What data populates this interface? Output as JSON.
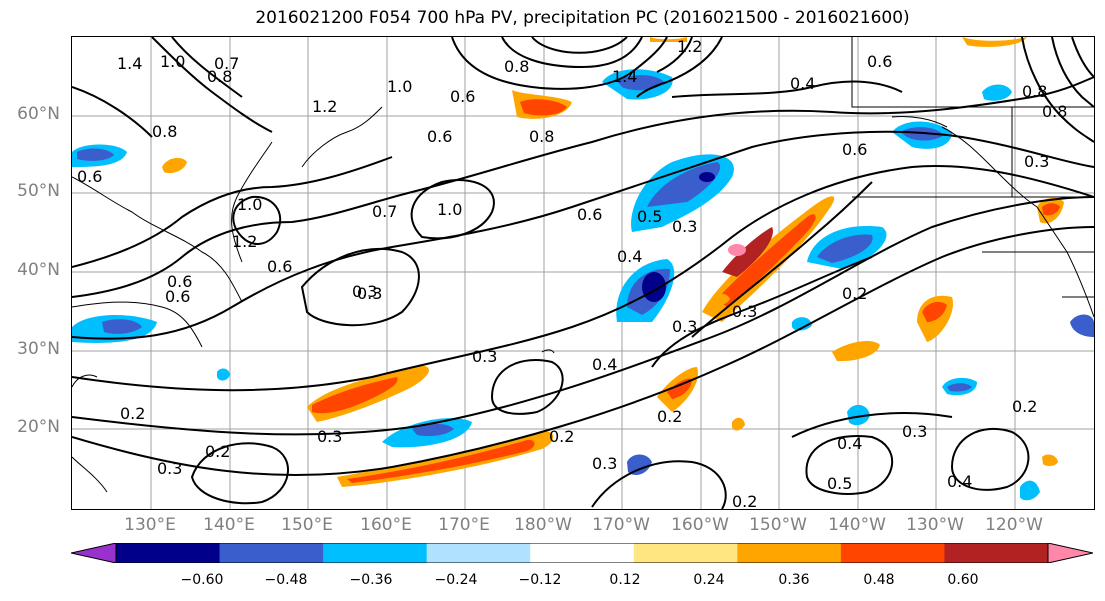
{
  "title": "2016021200 F054 700 hPa PV, precipitation PC (2016021500 - 2016021600)",
  "lat_labels": [
    "60°N",
    "50°N",
    "40°N",
    "30°N",
    "20°N"
  ],
  "lon_labels": [
    "130°E",
    "140°E",
    "150°E",
    "160°E",
    "170°E",
    "180°W",
    "170°W",
    "160°W",
    "150°W",
    "140°W",
    "130°W",
    "120°W"
  ],
  "colorbar": {
    "ticks": [
      "−0.60",
      "−0.48",
      "−0.36",
      "−0.24",
      "−0.12",
      "0.12",
      "0.24",
      "0.36",
      "0.48",
      "0.60"
    ],
    "colors": [
      "#9932cc",
      "#00008b",
      "#3a5fcd",
      "#00bfff",
      "#b0e2ff",
      "#ffffff",
      "#ffe680",
      "#ffa500",
      "#ff4500",
      "#b22222",
      "#ff88aa"
    ]
  },
  "contour_labels": [
    "1.4",
    "1.0",
    "0.7",
    "0.8",
    "1.2",
    "0.8",
    "0.6",
    "1.0",
    "0.8",
    "0.6",
    "1.4",
    "1.2",
    "0.8",
    "0.6",
    "0.4",
    "0.6",
    "0.8",
    "0.6",
    "0.3",
    "1.0",
    "1.2",
    "0.7",
    "1.0",
    "0.6",
    "0.3",
    "0.6",
    "0.5",
    "0.4",
    "0.3",
    "0.6",
    "0.3",
    "0.2",
    "0.3",
    "0.3",
    "0.4",
    "0.2",
    "0.3",
    "0.2",
    "0.2",
    "0.3",
    "0.2",
    "0.2",
    "0.3",
    "0.4",
    "0.5",
    "0.3",
    "0.4",
    "0.2",
    "0.3",
    "0.6",
    "0.8"
  ],
  "colors": {
    "grid": "#a0a0a0",
    "contour": "#000000",
    "axis_label": "#808080"
  }
}
